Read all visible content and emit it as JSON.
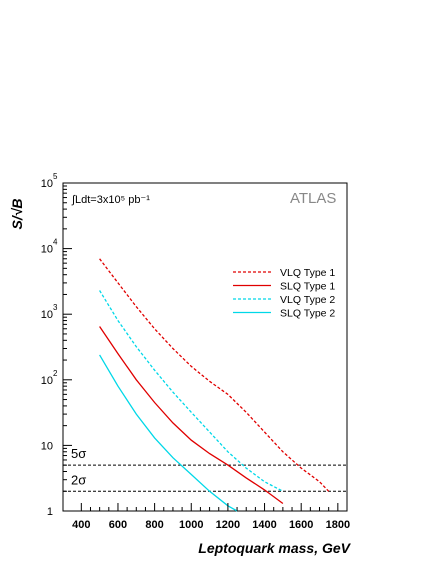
{
  "chart_data": {
    "type": "line",
    "xlabel": "Leptoquark mass, GeV",
    "ylabel": "S/√B",
    "xlim": [
      300,
      1850
    ],
    "ylim": [
      1,
      100000
    ],
    "yscale": "log",
    "xticks": [
      400,
      600,
      800,
      1000,
      1200,
      1400,
      1600,
      1800
    ],
    "yticks": [
      {
        "value": 1,
        "label": "1"
      },
      {
        "value": 10,
        "label": "10"
      },
      {
        "value": 100,
        "label": "10",
        "exp": "2"
      },
      {
        "value": 1000,
        "label": "10",
        "exp": "3"
      },
      {
        "value": 10000,
        "label": "10",
        "exp": "4"
      },
      {
        "value": 100000,
        "label": "10",
        "exp": "5"
      }
    ],
    "grid": false,
    "legend_position": "upper-right",
    "annotations": {
      "luminosity": "∫Ldt=3x10⁵ pb⁻¹",
      "experiment": "ATLAS"
    },
    "threshold_lines": [
      {
        "y": 5,
        "label": "5σ",
        "style": "dashed",
        "color": "#000000"
      },
      {
        "y": 2,
        "label": "2σ",
        "style": "dashed",
        "color": "#000000"
      }
    ],
    "series": [
      {
        "name": "VLQ Type 1",
        "color": "#e00000",
        "dash": true,
        "x": [
          500,
          600,
          700,
          800,
          900,
          1000,
          1100,
          1200,
          1300,
          1400,
          1500,
          1600,
          1700,
          1750
        ],
        "y": [
          7000,
          3000,
          1300,
          600,
          300,
          160,
          95,
          60,
          32,
          16,
          8,
          4.5,
          2.8,
          2
        ]
      },
      {
        "name": "SLQ Type 1",
        "color": "#e00000",
        "dash": false,
        "x": [
          500,
          600,
          700,
          800,
          900,
          1000,
          1100,
          1200,
          1300,
          1400,
          1500
        ],
        "y": [
          650,
          250,
          100,
          45,
          22,
          12,
          7.5,
          5,
          3.2,
          2.1,
          1.3
        ]
      },
      {
        "name": "VLQ Type 2",
        "color": "#00d8e8",
        "dash": true,
        "x": [
          500,
          600,
          700,
          800,
          900,
          1000,
          1100,
          1200,
          1300,
          1400,
          1500
        ],
        "y": [
          2300,
          800,
          320,
          140,
          65,
          32,
          16,
          8,
          4.5,
          2.8,
          2
        ]
      },
      {
        "name": "SLQ Type 2",
        "color": "#00d8e8",
        "dash": false,
        "x": [
          500,
          600,
          700,
          800,
          900,
          1000,
          1100,
          1200,
          1250
        ],
        "y": [
          240,
          80,
          30,
          13,
          6.5,
          3.6,
          2,
          1.2,
          1
        ]
      }
    ]
  }
}
